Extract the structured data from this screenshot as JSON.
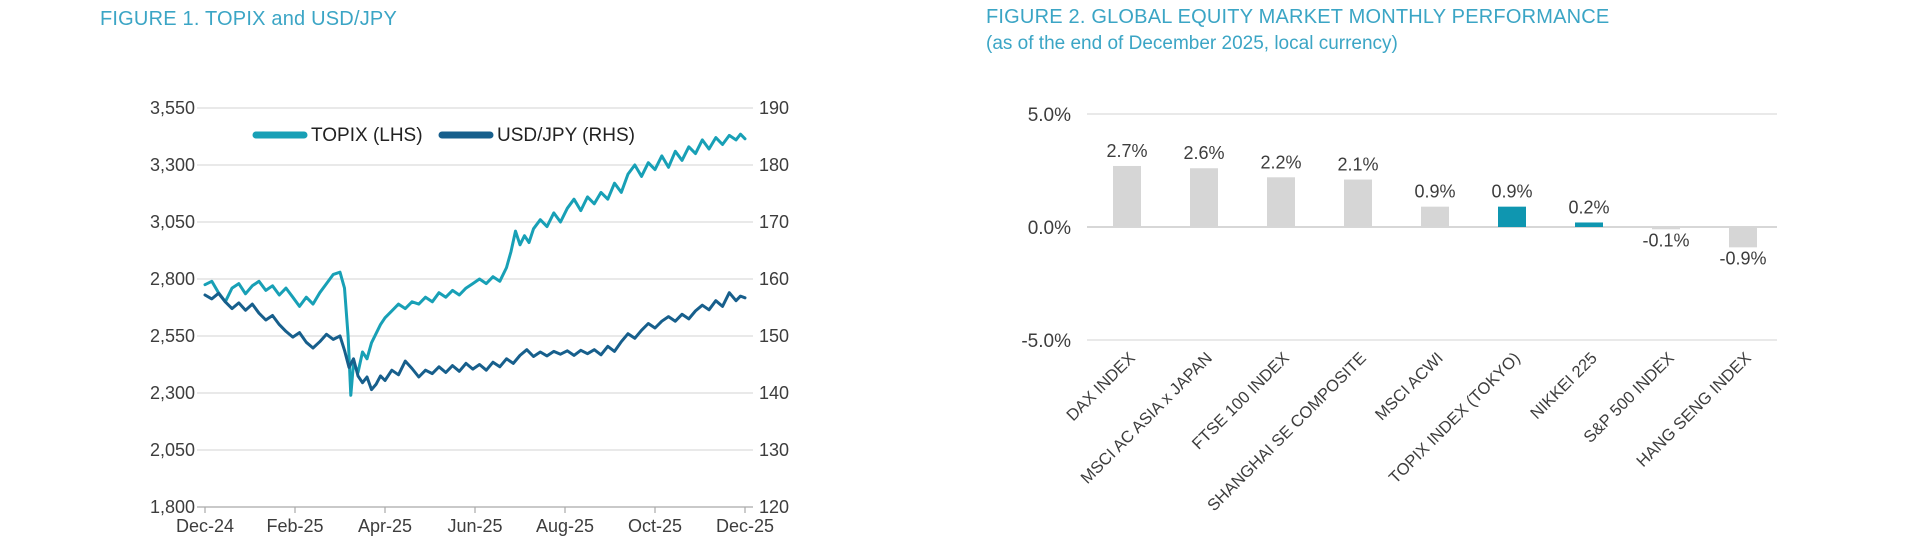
{
  "page": {
    "background": "#FFFFFF"
  },
  "colors": {
    "title_teal": "#3BA5C5",
    "topix_line": "#18A0B6",
    "usdjpy_line": "#175F8C",
    "bar_gray": "#D6D6D6",
    "bar_teal": "#0F96B0",
    "grid": "#DCDCDC",
    "axis_line": "#A9A9A9",
    "axis_text": "#3D3D3D"
  },
  "figure1": {
    "title": "FIGURE 1. TOPIX and USD/JPY"
  },
  "figure2": {
    "title": "FIGURE 2. GLOBAL EQUITY MARKET MONTHLY PERFORMANCE",
    "subtitle": "(as of the end of December 2025, local currency)"
  },
  "chart_data": [
    {
      "type": "line",
      "title": "FIGURE 1. TOPIX and USD/JPY",
      "x_tick_labels": [
        "Dec-24",
        "Feb-25",
        "Apr-25",
        "Jun-25",
        "Aug-25",
        "Oct-25",
        "Dec-25"
      ],
      "x_tick_months": [
        0,
        2,
        4,
        6,
        8,
        10,
        12
      ],
      "x_range_months": [
        0,
        12
      ],
      "left_axis": {
        "name": "TOPIX",
        "ticks": [
          3550,
          3300,
          3050,
          2800,
          2550,
          2300,
          2050,
          1800
        ],
        "range": [
          1800,
          3550
        ]
      },
      "right_axis": {
        "name": "USD/JPY",
        "ticks": [
          190,
          180,
          170,
          160,
          150,
          140,
          130,
          120
        ],
        "range": [
          120,
          190
        ]
      },
      "grid": true,
      "legend_position": "top-center",
      "series": [
        {
          "name": "TOPIX (LHS)",
          "axis": "left",
          "color_key": "topix_line",
          "points": [
            [
              0,
              2775
            ],
            [
              0.15,
              2790
            ],
            [
              0.3,
              2740
            ],
            [
              0.45,
              2700
            ],
            [
              0.6,
              2760
            ],
            [
              0.75,
              2780
            ],
            [
              0.9,
              2735
            ],
            [
              1.05,
              2770
            ],
            [
              1.2,
              2790
            ],
            [
              1.35,
              2750
            ],
            [
              1.5,
              2770
            ],
            [
              1.65,
              2730
            ],
            [
              1.8,
              2760
            ],
            [
              1.95,
              2720
            ],
            [
              2.1,
              2680
            ],
            [
              2.25,
              2720
            ],
            [
              2.4,
              2690
            ],
            [
              2.55,
              2740
            ],
            [
              2.7,
              2780
            ],
            [
              2.85,
              2820
            ],
            [
              3.0,
              2830
            ],
            [
              3.1,
              2760
            ],
            [
              3.18,
              2550
            ],
            [
              3.24,
              2290
            ],
            [
              3.3,
              2430
            ],
            [
              3.4,
              2390
            ],
            [
              3.5,
              2480
            ],
            [
              3.6,
              2450
            ],
            [
              3.7,
              2520
            ],
            [
              3.8,
              2560
            ],
            [
              3.9,
              2600
            ],
            [
              4.0,
              2630
            ],
            [
              4.15,
              2660
            ],
            [
              4.3,
              2690
            ],
            [
              4.45,
              2670
            ],
            [
              4.6,
              2700
            ],
            [
              4.75,
              2690
            ],
            [
              4.9,
              2720
            ],
            [
              5.05,
              2700
            ],
            [
              5.2,
              2740
            ],
            [
              5.35,
              2720
            ],
            [
              5.5,
              2750
            ],
            [
              5.65,
              2730
            ],
            [
              5.8,
              2760
            ],
            [
              5.95,
              2780
            ],
            [
              6.1,
              2800
            ],
            [
              6.25,
              2780
            ],
            [
              6.4,
              2810
            ],
            [
              6.55,
              2790
            ],
            [
              6.7,
              2850
            ],
            [
              6.8,
              2920
            ],
            [
              6.9,
              3010
            ],
            [
              7.0,
              2950
            ],
            [
              7.1,
              2990
            ],
            [
              7.2,
              2960
            ],
            [
              7.3,
              3020
            ],
            [
              7.45,
              3060
            ],
            [
              7.6,
              3030
            ],
            [
              7.75,
              3090
            ],
            [
              7.9,
              3050
            ],
            [
              8.05,
              3110
            ],
            [
              8.2,
              3150
            ],
            [
              8.35,
              3100
            ],
            [
              8.5,
              3160
            ],
            [
              8.65,
              3130
            ],
            [
              8.8,
              3180
            ],
            [
              8.95,
              3150
            ],
            [
              9.1,
              3220
            ],
            [
              9.25,
              3180
            ],
            [
              9.4,
              3260
            ],
            [
              9.55,
              3300
            ],
            [
              9.7,
              3250
            ],
            [
              9.85,
              3310
            ],
            [
              10.0,
              3280
            ],
            [
              10.15,
              3340
            ],
            [
              10.3,
              3290
            ],
            [
              10.45,
              3360
            ],
            [
              10.6,
              3320
            ],
            [
              10.75,
              3380
            ],
            [
              10.9,
              3350
            ],
            [
              11.05,
              3410
            ],
            [
              11.2,
              3370
            ],
            [
              11.35,
              3420
            ],
            [
              11.5,
              3390
            ],
            [
              11.65,
              3430
            ],
            [
              11.8,
              3410
            ],
            [
              11.9,
              3435
            ],
            [
              12.0,
              3415
            ]
          ]
        },
        {
          "name": "USD/JPY (RHS)",
          "axis": "right",
          "color_key": "usdjpy_line",
          "points": [
            [
              0,
              157.2
            ],
            [
              0.15,
              156.5
            ],
            [
              0.3,
              157.5
            ],
            [
              0.45,
              156.0
            ],
            [
              0.6,
              154.8
            ],
            [
              0.75,
              155.8
            ],
            [
              0.9,
              154.5
            ],
            [
              1.05,
              155.6
            ],
            [
              1.2,
              154.0
            ],
            [
              1.35,
              152.8
            ],
            [
              1.5,
              153.6
            ],
            [
              1.65,
              152.0
            ],
            [
              1.8,
              150.8
            ],
            [
              1.95,
              149.8
            ],
            [
              2.1,
              150.6
            ],
            [
              2.25,
              148.9
            ],
            [
              2.4,
              147.9
            ],
            [
              2.55,
              149.0
            ],
            [
              2.7,
              150.3
            ],
            [
              2.85,
              149.4
            ],
            [
              3.0,
              150.0
            ],
            [
              3.1,
              147.5
            ],
            [
              3.2,
              144.5
            ],
            [
              3.3,
              146.0
            ],
            [
              3.4,
              143.0
            ],
            [
              3.5,
              141.8
            ],
            [
              3.6,
              142.8
            ],
            [
              3.7,
              140.6
            ],
            [
              3.8,
              141.5
            ],
            [
              3.9,
              143.0
            ],
            [
              4.0,
              142.2
            ],
            [
              4.15,
              144.0
            ],
            [
              4.3,
              143.2
            ],
            [
              4.45,
              145.6
            ],
            [
              4.6,
              144.3
            ],
            [
              4.75,
              142.8
            ],
            [
              4.9,
              144.0
            ],
            [
              5.05,
              143.4
            ],
            [
              5.2,
              144.6
            ],
            [
              5.35,
              143.6
            ],
            [
              5.5,
              144.8
            ],
            [
              5.65,
              143.8
            ],
            [
              5.8,
              145.2
            ],
            [
              5.95,
              144.2
            ],
            [
              6.1,
              145.0
            ],
            [
              6.25,
              144.0
            ],
            [
              6.4,
              145.4
            ],
            [
              6.55,
              144.6
            ],
            [
              6.7,
              146.0
            ],
            [
              6.85,
              145.2
            ],
            [
              7.0,
              146.6
            ],
            [
              7.15,
              147.6
            ],
            [
              7.3,
              146.4
            ],
            [
              7.45,
              147.2
            ],
            [
              7.6,
              146.5
            ],
            [
              7.75,
              147.3
            ],
            [
              7.9,
              146.8
            ],
            [
              8.05,
              147.4
            ],
            [
              8.2,
              146.6
            ],
            [
              8.35,
              147.5
            ],
            [
              8.5,
              146.9
            ],
            [
              8.65,
              147.6
            ],
            [
              8.8,
              146.7
            ],
            [
              8.95,
              148.2
            ],
            [
              9.1,
              147.3
            ],
            [
              9.25,
              149.0
            ],
            [
              9.4,
              150.4
            ],
            [
              9.55,
              149.6
            ],
            [
              9.7,
              151.0
            ],
            [
              9.85,
              152.2
            ],
            [
              10.0,
              151.4
            ],
            [
              10.15,
              152.6
            ],
            [
              10.3,
              153.4
            ],
            [
              10.45,
              152.6
            ],
            [
              10.6,
              153.8
            ],
            [
              10.75,
              153.0
            ],
            [
              10.9,
              154.4
            ],
            [
              11.05,
              155.4
            ],
            [
              11.2,
              154.6
            ],
            [
              11.35,
              156.2
            ],
            [
              11.5,
              155.2
            ],
            [
              11.65,
              157.6
            ],
            [
              11.8,
              156.2
            ],
            [
              11.9,
              157.0
            ],
            [
              12.0,
              156.7
            ]
          ]
        }
      ]
    },
    {
      "type": "bar",
      "title": "FIGURE 2. GLOBAL EQUITY MARKET MONTHLY PERFORMANCE",
      "subtitle": "(as of the end of December 2025, local currency)",
      "categories": [
        "DAX INDEX",
        "MSCI AC ASIA x JAPAN",
        "FTSE 100 INDEX",
        "SHANGHAI SE COMPOSITE",
        "MSCI ACWI",
        "TOPIX INDEX (TOKYO)",
        "NIKKEI 225",
        "S&P 500 INDEX",
        "HANG SENG INDEX"
      ],
      "values": [
        2.7,
        2.6,
        2.2,
        2.1,
        0.9,
        0.9,
        0.2,
        -0.1,
        -0.9
      ],
      "value_labels": [
        "2.7%",
        "2.6%",
        "2.2%",
        "2.1%",
        "0.9%",
        "0.9%",
        "0.2%",
        "-0.1%",
        "-0.9%"
      ],
      "bar_color_keys": [
        "bar_gray",
        "bar_gray",
        "bar_gray",
        "bar_gray",
        "bar_gray",
        "bar_teal",
        "bar_teal",
        "bar_gray",
        "bar_gray"
      ],
      "ylabel": "",
      "ylim": [
        -5.0,
        5.0
      ],
      "y_ticks": [
        [
          "5.0%",
          5.0
        ],
        [
          "0.0%",
          0.0
        ],
        [
          "-5.0%",
          -5.0
        ]
      ],
      "grid": true,
      "legend_position": "none"
    }
  ]
}
